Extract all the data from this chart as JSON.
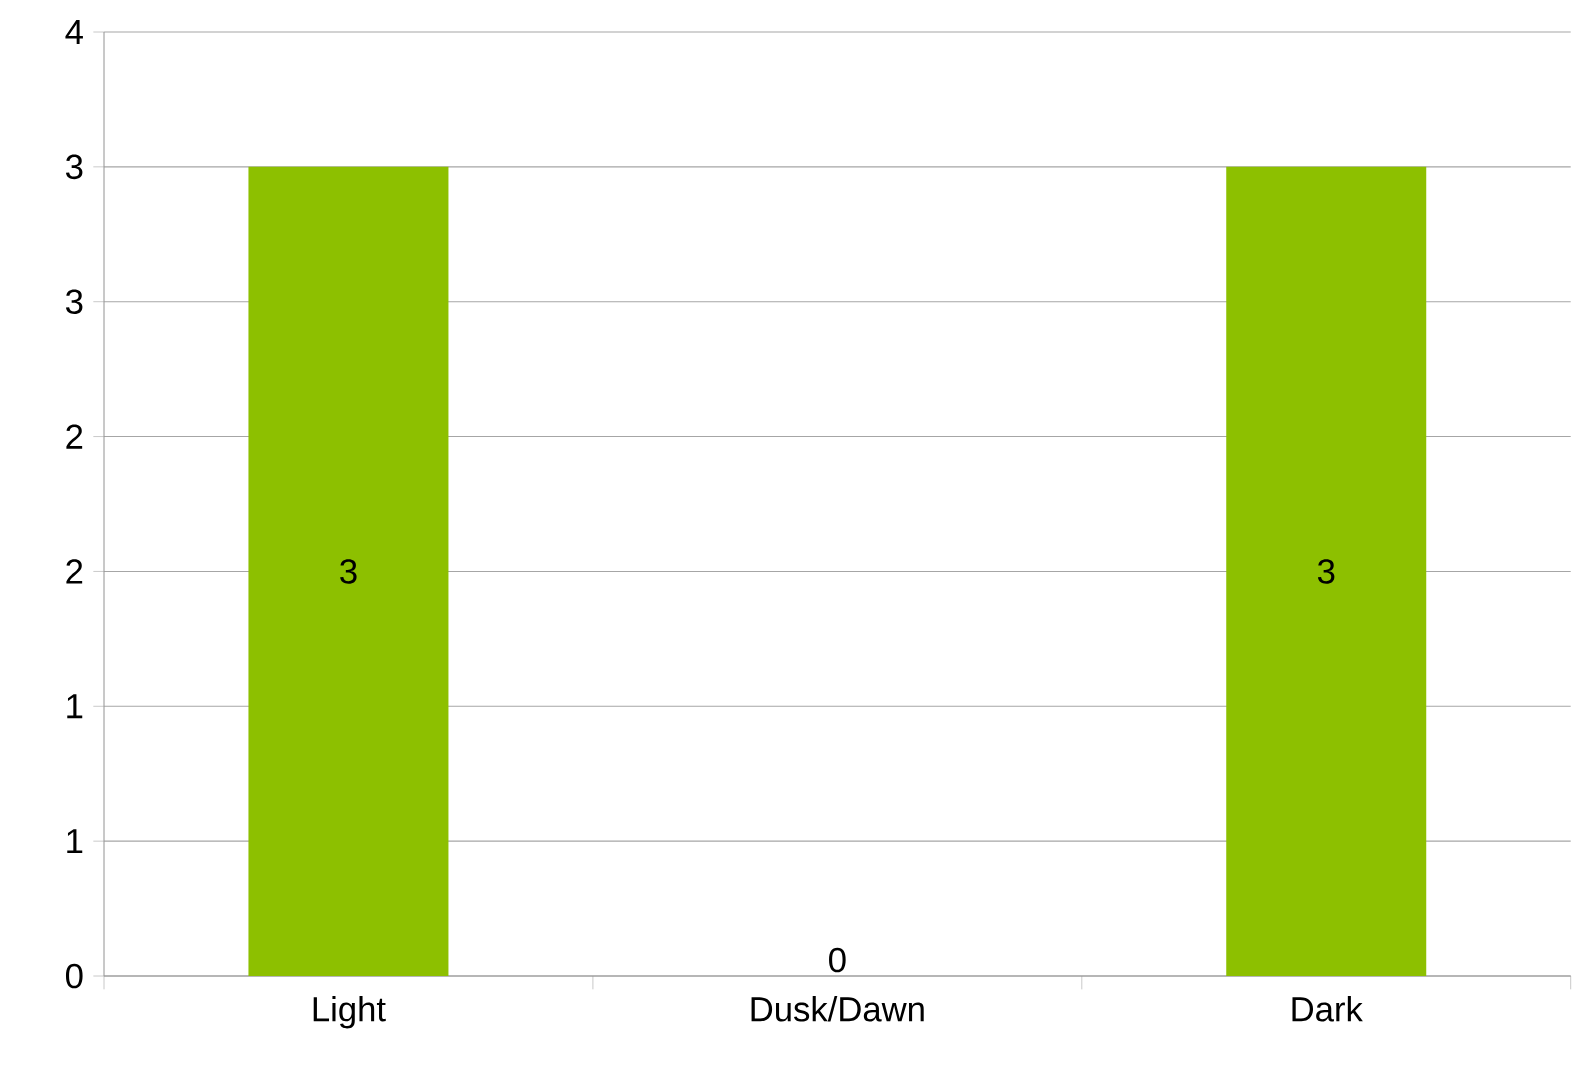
{
  "chart_data": {
    "type": "bar",
    "categories": [
      "Light",
      "Dusk/Dawn",
      "Dark"
    ],
    "values": [
      3,
      0,
      3
    ],
    "value_labels": [
      "3",
      "0",
      "3"
    ],
    "color": "#8dc000",
    "ylim": [
      0,
      3.5
    ],
    "yticks": [
      {
        "value": 0,
        "label": "0"
      },
      {
        "value": 0.5,
        "label": "1"
      },
      {
        "value": 1,
        "label": "1"
      },
      {
        "value": 1.5,
        "label": "2"
      },
      {
        "value": 2,
        "label": "2"
      },
      {
        "value": 2.5,
        "label": "3"
      },
      {
        "value": 3,
        "label": "3"
      },
      {
        "value": 3.5,
        "label": "4"
      }
    ],
    "grid": "y"
  }
}
